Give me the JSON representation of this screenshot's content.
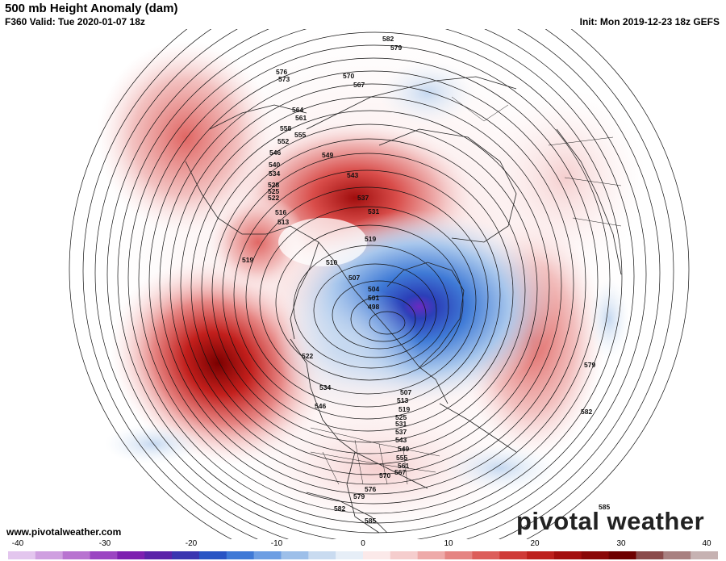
{
  "header": {
    "title": "500 mb Height Anomaly (dam)",
    "valid": "F360 Valid: Tue 2020-01-07 18z",
    "init": "Init: Mon 2019-12-23 18z GEFS"
  },
  "footer": {
    "website": "www.pivotalweather.com",
    "brand": "pivotal weather"
  },
  "colorbar": {
    "tick_labels": [
      "-40",
      "-30",
      "-20",
      "-10",
      "0",
      "10",
      "20",
      "30",
      "40"
    ],
    "colors_negative": [
      "#e3c6ee",
      "#cf9fe0",
      "#b873d0",
      "#9b44c2",
      "#7d1fb0",
      "#5a22a8",
      "#3a35b0",
      "#2854c4",
      "#3f79d6",
      "#6d9ee3",
      "#9dbfe9",
      "#c9dbf0",
      "#e6eef7"
    ],
    "colors_positive": [
      "#fbe9e9",
      "#f5cdcd",
      "#eeaaa9",
      "#e58482",
      "#dc5d5a",
      "#cf3a37",
      "#bd201d",
      "#a30e0e",
      "#8a0707",
      "#6e0000",
      "#8a4a4a",
      "#a88080",
      "#c6b2b2"
    ]
  },
  "contour_labels": [
    "582",
    "579",
    "576",
    "573",
    "570",
    "567",
    "564",
    "561",
    "558",
    "555",
    "552",
    "549",
    "546",
    "543",
    "540",
    "537",
    "534",
    "531",
    "528",
    "525",
    "522",
    "519",
    "516",
    "513",
    "510",
    "507",
    "504",
    "501",
    "498",
    "522",
    "519",
    "534",
    "546",
    "507",
    "513",
    "519",
    "525",
    "531",
    "537",
    "543",
    "549",
    "555",
    "561",
    "567",
    "570",
    "576",
    "579",
    "582",
    "585",
    "585",
    "579",
    "582"
  ]
}
